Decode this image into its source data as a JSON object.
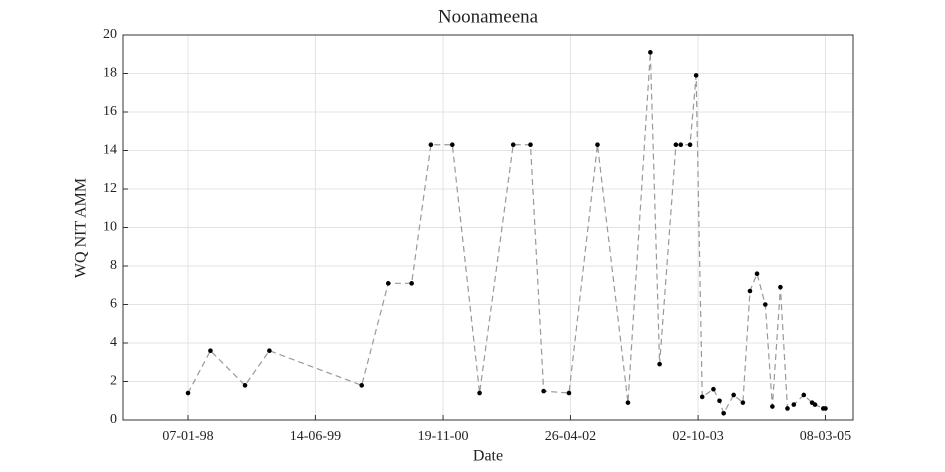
{
  "chart_data": {
    "type": "line",
    "title": "Noonameena",
    "x_label": "Date",
    "y_label": "WQ NIT AMM",
    "x": [
      "1998-01-07",
      "1998-04-09",
      "1998-08-29",
      "1998-12-07",
      "1999-12-21",
      "2000-04-08",
      "2000-07-13",
      "2000-09-30",
      "2000-12-27",
      "2001-04-18",
      "2001-09-03",
      "2001-11-13",
      "2002-01-06",
      "2002-04-20",
      "2002-08-15",
      "2002-12-18",
      "2003-03-20",
      "2003-04-27",
      "2003-07-03",
      "2003-07-23",
      "2003-08-30",
      "2003-09-24",
      "2003-10-19",
      "2003-12-04",
      "2003-12-29",
      "2004-01-15",
      "2004-02-25",
      "2004-04-03",
      "2004-05-02",
      "2004-05-31",
      "2004-07-04",
      "2004-08-02",
      "2004-09-04",
      "2004-10-03",
      "2004-10-29",
      "2004-12-09",
      "2005-01-12",
      "2005-01-24",
      "2005-02-27",
      "2005-03-08"
    ],
    "series": [
      {
        "name": "WQ NIT AMM",
        "color": "#999999",
        "values": [
          1.4,
          3.6,
          1.8,
          3.6,
          1.8,
          7.1,
          7.1,
          14.3,
          14.3,
          1.4,
          14.3,
          14.3,
          1.5,
          1.4,
          14.3,
          0.9,
          19.1,
          2.9,
          14.3,
          14.3,
          14.3,
          17.9,
          1.2,
          1.6,
          1.0,
          0.35,
          1.3,
          0.9,
          6.7,
          7.6,
          6.0,
          0.7,
          6.9,
          0.6,
          0.8,
          1.3,
          0.9,
          0.8,
          0.6,
          0.6
        ]
      }
    ],
    "marker_color": "#000000",
    "xlim": [
      "1997-04-15",
      "2005-06-29"
    ],
    "xticks": [
      {
        "value": "1998-01-07",
        "label": "07-01-98"
      },
      {
        "value": "1999-06-14",
        "label": "14-06-99"
      },
      {
        "value": "2000-11-19",
        "label": "19-11-00"
      },
      {
        "value": "2002-04-26",
        "label": "26-04-02"
      },
      {
        "value": "2003-10-02",
        "label": "02-10-03"
      },
      {
        "value": "2005-03-08",
        "label": "08-03-05"
      }
    ],
    "ylim": [
      0,
      20
    ],
    "yticks": [
      0,
      2,
      4,
      6,
      8,
      10,
      12,
      14,
      16,
      18,
      20
    ],
    "grid": true
  }
}
